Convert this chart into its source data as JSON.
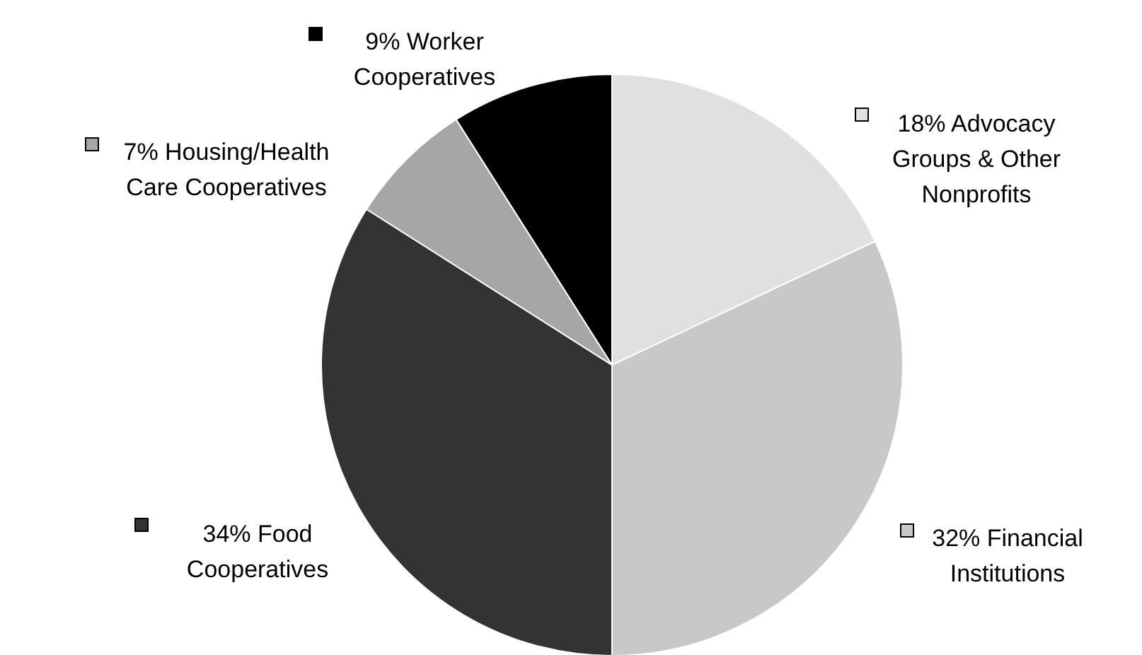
{
  "chart_data": {
    "type": "pie",
    "categories": [
      "Advocacy Groups & Other Nonprofits",
      "Financial Institutions",
      "Food Cooperatives",
      "Housing/Health Care Cooperatives",
      "Worker Cooperatives"
    ],
    "values": [
      18,
      32,
      34,
      7,
      9
    ],
    "value_labels": [
      "18%",
      "32%",
      "34%",
      "7%",
      "9%"
    ],
    "colors": [
      "#e0e0e0",
      "#c8c8c8",
      "#333333",
      "#a6a6a6",
      "#000000"
    ],
    "legend": "right"
  }
}
